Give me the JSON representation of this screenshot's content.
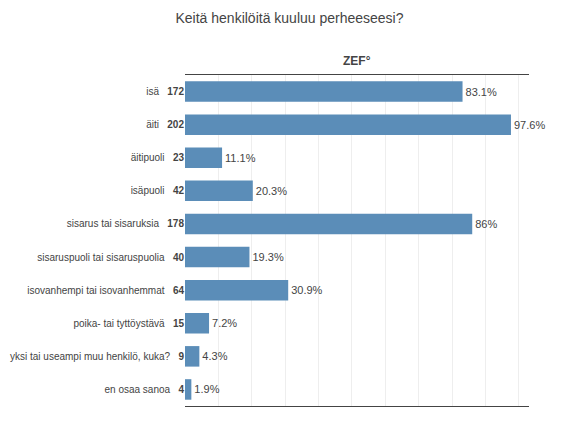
{
  "chart_data": {
    "type": "bar",
    "orientation": "horizontal",
    "title": "Keitä henkilöitä kuuluu perheeseesi?",
    "categories": [
      "isä",
      "äiti",
      "äitipuoli",
      "isäpuoli",
      "sisarus tai sisaruksia",
      "sisaruspuoli tai sisaruspuolia",
      "isovanhempi tai isovanhemmat",
      "poika- tai tyttöystävä",
      "yksi tai useampi muu henkilö, kuka?",
      "en osaa sanoa"
    ],
    "values": [
      83.1,
      97.6,
      11.1,
      20.3,
      86.0,
      19.3,
      30.9,
      7.2,
      4.3,
      1.9
    ],
    "value_labels": [
      "83.1%",
      "97.6%",
      "11.1%",
      "20.3%",
      "86%",
      "19.3%",
      "30.9%",
      "7.2%",
      "4.3%",
      "1.9%"
    ],
    "counts": [
      172,
      202,
      23,
      42,
      178,
      40,
      64,
      15,
      9,
      4
    ],
    "data_labels": true,
    "color": "#5b8db8",
    "xlim": [
      0,
      103
    ],
    "xticks": [
      0,
      10,
      20,
      30,
      40,
      50,
      60,
      70,
      80,
      90,
      100
    ],
    "grid": true,
    "tick_labels": "y",
    "annotations": [
      "ZEF°"
    ]
  }
}
